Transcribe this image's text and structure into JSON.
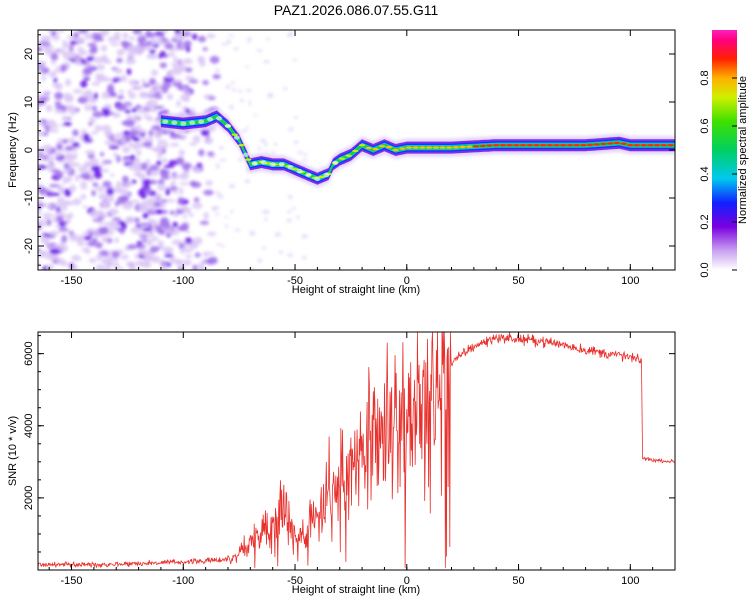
{
  "page_title": "PAZ1.2026.086.07.55.G11",
  "chart_data": [
    {
      "type": "heatmap",
      "title": "PAZ1.2026.086.07.55.G11",
      "xlabel": "Height of straight line (km)",
      "ylabel": "Frequency (Hz)",
      "xlim": [
        -165,
        120
      ],
      "ylim": [
        -25,
        25
      ],
      "xticks": [
        -150,
        -100,
        -50,
        0,
        50,
        100
      ],
      "yticks": [
        -20,
        -10,
        0,
        10,
        20
      ],
      "colorbar": {
        "label": "Normalized spectral amplitude",
        "range": [
          0,
          1
        ],
        "ticks": [
          0.0,
          0.2,
          0.4,
          0.6,
          0.8
        ]
      },
      "ridge": {
        "x": [
          -110,
          -100,
          -90,
          -85,
          -80,
          -75,
          -70,
          -65,
          -60,
          -55,
          -50,
          -45,
          -40,
          -35,
          -33,
          -30,
          -25,
          -20,
          -15,
          -10,
          -5,
          0,
          10,
          20,
          40,
          60,
          80,
          95,
          100,
          120
        ],
        "y": [
          6,
          5.5,
          6,
          7,
          5,
          2,
          -3,
          -2.5,
          -3,
          -3,
          -4,
          -5,
          -6,
          -5,
          -3,
          -2,
          -1,
          1,
          0,
          1,
          0,
          0.5,
          0.5,
          0.5,
          1,
          1,
          1,
          1.5,
          1,
          1
        ]
      },
      "noise_region_x": [
        -165,
        -85
      ]
    },
    {
      "type": "line",
      "xlabel": "Height of straight line (km)",
      "ylabel": "SNR (10 * v/v)",
      "xlim": [
        -165,
        120
      ],
      "ylim": [
        0,
        6600
      ],
      "xticks": [
        -150,
        -100,
        -50,
        0,
        50,
        100
      ],
      "yticks": [
        2000,
        4000,
        6000
      ],
      "series": [
        {
          "name": "SNR",
          "color": "#e8302c",
          "x": [
            -165,
            -140,
            -110,
            -90,
            -80,
            -75,
            -70,
            -65,
            -60,
            -55,
            -50,
            -45,
            -40,
            -35,
            -30,
            -25,
            -20,
            -15,
            -10,
            -5,
            0,
            5,
            10,
            15,
            20,
            25,
            30,
            40,
            50,
            60,
            70,
            80,
            90,
            100,
            104,
            105,
            105.5,
            110,
            120
          ],
          "y": [
            150,
            150,
            200,
            250,
            300,
            500,
            800,
            1200,
            1200,
            1800,
            1100,
            900,
            1600,
            2200,
            2500,
            2900,
            3100,
            3400,
            3800,
            3900,
            4100,
            4400,
            4600,
            5300,
            5700,
            6000,
            6200,
            6450,
            6400,
            6350,
            6250,
            6100,
            6000,
            5900,
            5800,
            5800,
            3100,
            3050,
            3000
          ]
        }
      ]
    }
  ]
}
